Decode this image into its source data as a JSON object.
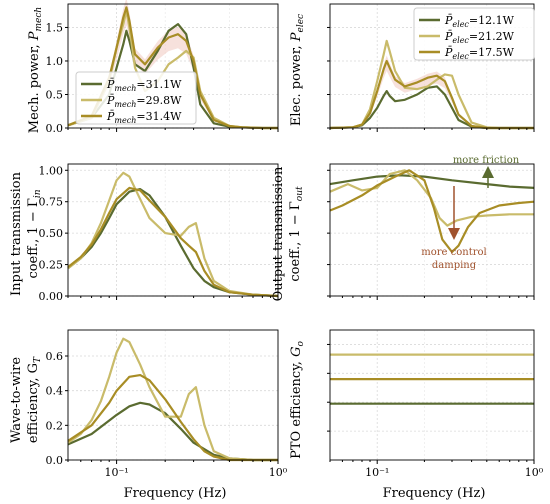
{
  "colors": {
    "dark": "#5a6b30",
    "light": "#c9bb6a",
    "mid": "#a88d25",
    "fill": "#f0c8c0"
  },
  "chart_data": [
    {
      "id": "mech",
      "type": "line",
      "xscale": "log",
      "xlim": [
        0.05,
        1.0
      ],
      "ylim": [
        0,
        1.85
      ],
      "yticks": [
        0.0,
        0.5,
        1.0,
        1.5
      ],
      "ytick_labels": [
        "0.0",
        "0.5",
        "1.0",
        "1.5"
      ],
      "xtick_labels": [],
      "ylabel": [
        "Mech. power, ",
        "P",
        "mech"
      ],
      "xlabel": "",
      "legend": "center-left",
      "series": [
        {
          "name": "P̄mech=31.1W",
          "legend_label": [
            "P̄",
            "mech",
            "=31.1W"
          ],
          "color": "dark",
          "x": [
            0.05,
            0.07,
            0.09,
            0.1,
            0.11,
            0.115,
            0.12,
            0.13,
            0.15,
            0.18,
            0.21,
            0.24,
            0.27,
            0.3,
            0.33,
            0.4,
            0.5,
            0.6,
            0.8,
            1.0
          ],
          "y": [
            0.04,
            0.15,
            0.5,
            0.9,
            1.25,
            1.45,
            1.3,
            0.95,
            0.85,
            1.15,
            1.45,
            1.55,
            1.4,
            0.9,
            0.35,
            0.07,
            0.02,
            0.01,
            0.0,
            0.0
          ]
        },
        {
          "name": "P̄mech=29.8W",
          "legend_label": [
            "P̄",
            "mech",
            "=29.8W"
          ],
          "color": "light",
          "x": [
            0.05,
            0.07,
            0.09,
            0.1,
            0.11,
            0.115,
            0.12,
            0.13,
            0.15,
            0.18,
            0.21,
            0.24,
            0.27,
            0.3,
            0.33,
            0.4,
            0.5,
            0.6,
            0.8,
            1.0
          ],
          "y": [
            0.04,
            0.15,
            0.7,
            1.2,
            1.55,
            1.75,
            1.5,
            0.9,
            0.55,
            0.7,
            0.95,
            1.05,
            1.15,
            1.05,
            0.55,
            0.15,
            0.03,
            0.01,
            0.0,
            0.0
          ]
        },
        {
          "name": "P̄mech=31.4W",
          "legend_label": [
            "P̄",
            "mech",
            "=31.4W"
          ],
          "color": "mid",
          "x": [
            0.05,
            0.07,
            0.09,
            0.1,
            0.11,
            0.115,
            0.12,
            0.13,
            0.15,
            0.18,
            0.21,
            0.24,
            0.27,
            0.3,
            0.33,
            0.4,
            0.5,
            0.6,
            0.8,
            1.0
          ],
          "y": [
            0.04,
            0.18,
            0.75,
            1.2,
            1.65,
            1.8,
            1.6,
            1.1,
            0.95,
            1.2,
            1.35,
            1.4,
            1.3,
            1.0,
            0.5,
            0.12,
            0.03,
            0.01,
            0.0,
            0.0
          ]
        }
      ]
    },
    {
      "id": "elec",
      "type": "line",
      "xscale": "log",
      "xlim": [
        0.05,
        1.0
      ],
      "ylim": [
        0,
        1.85
      ],
      "yticks": [
        0.0,
        0.5,
        1.0,
        1.5
      ],
      "ytick_labels": [],
      "xtick_labels": [],
      "ylabel": [
        "Elec. power, ",
        "P",
        "elec"
      ],
      "xlabel": "",
      "legend": "top-right",
      "series": [
        {
          "name": "P̄elec=12.1W",
          "legend_label": [
            "P̄",
            "elec",
            "=12.1W"
          ],
          "color": "dark",
          "x": [
            0.05,
            0.07,
            0.08,
            0.09,
            0.1,
            0.11,
            0.115,
            0.12,
            0.13,
            0.15,
            0.18,
            0.21,
            0.24,
            0.27,
            0.3,
            0.33,
            0.4,
            0.5,
            0.6,
            0.8,
            1.0
          ],
          "y": [
            0.0,
            0.01,
            0.04,
            0.15,
            0.3,
            0.48,
            0.55,
            0.48,
            0.4,
            0.42,
            0.5,
            0.6,
            0.62,
            0.5,
            0.3,
            0.12,
            0.02,
            0.0,
            0.0,
            0.0,
            0.0
          ]
        },
        {
          "name": "P̄elec=21.2W",
          "legend_label": [
            "P̄",
            "elec",
            "=21.2W"
          ],
          "color": "light",
          "x": [
            0.05,
            0.07,
            0.08,
            0.09,
            0.1,
            0.11,
            0.115,
            0.12,
            0.13,
            0.15,
            0.18,
            0.21,
            0.24,
            0.27,
            0.3,
            0.33,
            0.4,
            0.5,
            0.6,
            0.8,
            1.0
          ],
          "y": [
            0.0,
            0.01,
            0.05,
            0.28,
            0.7,
            1.1,
            1.3,
            1.15,
            0.85,
            0.6,
            0.58,
            0.62,
            0.72,
            0.8,
            0.78,
            0.5,
            0.08,
            0.01,
            0.0,
            0.0,
            0.0
          ]
        },
        {
          "name": "P̄elec=17.5W",
          "legend_label": [
            "P̄",
            "elec",
            "=17.5W"
          ],
          "color": "mid",
          "x": [
            0.05,
            0.07,
            0.08,
            0.09,
            0.1,
            0.11,
            0.115,
            0.12,
            0.13,
            0.15,
            0.18,
            0.21,
            0.24,
            0.27,
            0.3,
            0.33,
            0.4,
            0.5,
            0.6,
            0.8,
            1.0
          ],
          "y": [
            0.0,
            0.01,
            0.05,
            0.22,
            0.55,
            0.88,
            1.0,
            0.9,
            0.72,
            0.62,
            0.68,
            0.75,
            0.78,
            0.7,
            0.45,
            0.2,
            0.03,
            0.0,
            0.0,
            0.0,
            0.0
          ]
        }
      ]
    },
    {
      "id": "input",
      "type": "line",
      "xscale": "log",
      "xlim": [
        0.05,
        1.0
      ],
      "ylim": [
        0,
        1.05
      ],
      "yticks": [
        0.0,
        0.25,
        0.5,
        0.75,
        1.0
      ],
      "ytick_labels": [
        "0.00",
        "0.25",
        "0.50",
        "0.75",
        "1.00"
      ],
      "xtick_labels": [],
      "ylabel_lines": [
        "Input transmission",
        "coeff., 1 − Γ"
      ],
      "ylabel_sub": "in",
      "xlabel": "",
      "legend": "none",
      "series": [
        {
          "color": "dark",
          "x": [
            0.05,
            0.06,
            0.07,
            0.08,
            0.09,
            0.1,
            0.12,
            0.14,
            0.16,
            0.2,
            0.25,
            0.3,
            0.35,
            0.4,
            0.5,
            0.7,
            1.0
          ],
          "y": [
            0.22,
            0.3,
            0.39,
            0.5,
            0.62,
            0.73,
            0.83,
            0.85,
            0.8,
            0.63,
            0.4,
            0.22,
            0.12,
            0.07,
            0.03,
            0.01,
            0.0
          ]
        },
        {
          "color": "light",
          "x": [
            0.05,
            0.06,
            0.07,
            0.08,
            0.09,
            0.1,
            0.11,
            0.12,
            0.14,
            0.16,
            0.2,
            0.25,
            0.28,
            0.31,
            0.35,
            0.4,
            0.5,
            0.7,
            1.0
          ],
          "y": [
            0.22,
            0.3,
            0.42,
            0.58,
            0.76,
            0.92,
            0.98,
            0.95,
            0.77,
            0.62,
            0.5,
            0.48,
            0.55,
            0.58,
            0.3,
            0.12,
            0.04,
            0.01,
            0.0
          ]
        },
        {
          "color": "mid",
          "x": [
            0.05,
            0.06,
            0.07,
            0.08,
            0.09,
            0.1,
            0.12,
            0.14,
            0.16,
            0.2,
            0.25,
            0.28,
            0.31,
            0.35,
            0.4,
            0.5,
            0.7,
            1.0
          ],
          "y": [
            0.23,
            0.31,
            0.41,
            0.53,
            0.66,
            0.77,
            0.86,
            0.84,
            0.76,
            0.63,
            0.46,
            0.4,
            0.35,
            0.2,
            0.09,
            0.03,
            0.01,
            0.0
          ]
        }
      ]
    },
    {
      "id": "output",
      "type": "line",
      "xscale": "log",
      "xlim": [
        0.05,
        1.0
      ],
      "ylim": [
        0,
        1.05
      ],
      "yticks": [
        0.0,
        0.25,
        0.5,
        0.75,
        1.0
      ],
      "ytick_labels": [],
      "xtick_labels": [],
      "ylabel_lines": [
        "Output transmission",
        "coeff., 1 − Γ"
      ],
      "ylabel_sub": "out",
      "xlabel": "",
      "legend": "none",
      "annotations": {
        "friction": "more friction",
        "damping_1": "more control",
        "damping_2": "damping"
      },
      "series": [
        {
          "color": "dark",
          "x": [
            0.05,
            0.07,
            0.1,
            0.14,
            0.2,
            0.3,
            0.5,
            0.7,
            1.0
          ],
          "y": [
            0.89,
            0.92,
            0.95,
            0.96,
            0.95,
            0.92,
            0.89,
            0.87,
            0.86
          ]
        },
        {
          "color": "light",
          "x": [
            0.05,
            0.065,
            0.08,
            0.1,
            0.12,
            0.15,
            0.18,
            0.22,
            0.25,
            0.28,
            0.32,
            0.4,
            0.5,
            0.7,
            1.0
          ],
          "y": [
            0.83,
            0.89,
            0.84,
            0.86,
            0.97,
            1.0,
            0.92,
            0.78,
            0.62,
            0.56,
            0.6,
            0.63,
            0.64,
            0.65,
            0.65
          ]
        },
        {
          "color": "mid",
          "x": [
            0.05,
            0.06,
            0.08,
            0.1,
            0.13,
            0.16,
            0.2,
            0.23,
            0.26,
            0.3,
            0.33,
            0.38,
            0.45,
            0.6,
            0.8,
            1.0
          ],
          "y": [
            0.68,
            0.72,
            0.8,
            0.88,
            0.95,
            1.0,
            0.92,
            0.7,
            0.45,
            0.35,
            0.4,
            0.55,
            0.66,
            0.72,
            0.74,
            0.75
          ]
        }
      ]
    },
    {
      "id": "w2w",
      "type": "line",
      "xscale": "log",
      "xlim": [
        0.05,
        1.0
      ],
      "ylim": [
        0,
        0.75
      ],
      "yticks": [
        0.0,
        0.2,
        0.4,
        0.6
      ],
      "ytick_labels": [
        "0.0",
        "0.2",
        "0.4",
        "0.6"
      ],
      "xtick_labels": [
        "10⁻¹",
        "10⁰"
      ],
      "ylabel_lines": [
        "Wave-to-wire",
        "efficiency, G"
      ],
      "ylabel_sub": "T",
      "xlabel": "Frequency (Hz)",
      "legend": "none",
      "series": [
        {
          "color": "dark",
          "x": [
            0.05,
            0.07,
            0.1,
            0.12,
            0.14,
            0.16,
            0.2,
            0.25,
            0.3,
            0.4,
            0.5,
            0.7,
            1.0
          ],
          "y": [
            0.09,
            0.15,
            0.26,
            0.31,
            0.33,
            0.32,
            0.27,
            0.18,
            0.1,
            0.03,
            0.01,
            0.0,
            0.0
          ]
        },
        {
          "color": "light",
          "x": [
            0.05,
            0.06,
            0.07,
            0.08,
            0.09,
            0.1,
            0.11,
            0.12,
            0.14,
            0.16,
            0.2,
            0.25,
            0.28,
            0.31,
            0.35,
            0.4,
            0.5,
            0.7,
            1.0
          ],
          "y": [
            0.1,
            0.15,
            0.23,
            0.34,
            0.48,
            0.62,
            0.7,
            0.68,
            0.55,
            0.42,
            0.25,
            0.25,
            0.38,
            0.42,
            0.2,
            0.05,
            0.01,
            0.0,
            0.0
          ]
        },
        {
          "color": "mid",
          "x": [
            0.05,
            0.07,
            0.09,
            0.1,
            0.12,
            0.14,
            0.16,
            0.2,
            0.25,
            0.3,
            0.35,
            0.4,
            0.5,
            0.7,
            1.0
          ],
          "y": [
            0.11,
            0.2,
            0.33,
            0.4,
            0.48,
            0.49,
            0.46,
            0.35,
            0.22,
            0.12,
            0.05,
            0.02,
            0.0,
            0.0,
            0.0
          ]
        }
      ]
    },
    {
      "id": "pto",
      "type": "line",
      "xscale": "log",
      "xlim": [
        0.05,
        1.0
      ],
      "ylim": [
        0,
        0.9
      ],
      "yticks": [
        0.2,
        0.4,
        0.6,
        0.8
      ],
      "ytick_labels": [],
      "xtick_labels": [
        "10⁻¹",
        "10⁰"
      ],
      "ylabel": [
        "PTO efficiency, ",
        "G",
        "o"
      ],
      "xlabel": "Frequency (Hz)",
      "legend": "none",
      "series": [
        {
          "color": "dark",
          "x": [
            0.05,
            1.0
          ],
          "y": [
            0.39,
            0.39
          ]
        },
        {
          "color": "light",
          "x": [
            0.05,
            1.0
          ],
          "y": [
            0.73,
            0.73
          ]
        },
        {
          "color": "mid",
          "x": [
            0.05,
            1.0
          ],
          "y": [
            0.56,
            0.56
          ]
        }
      ]
    }
  ]
}
